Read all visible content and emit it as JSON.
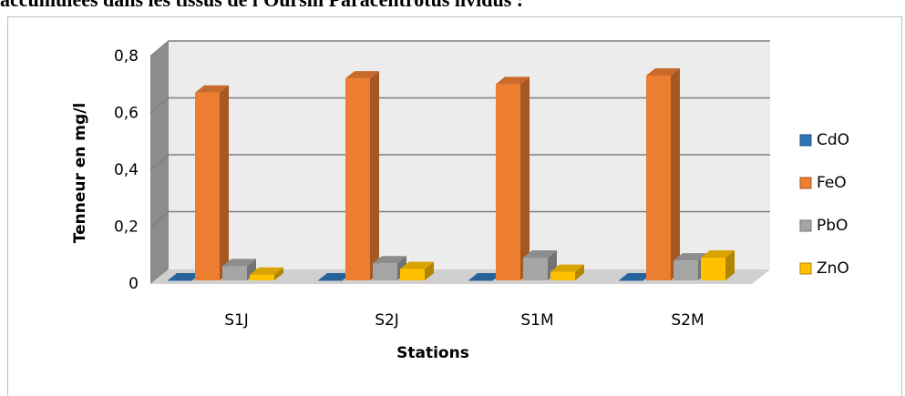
{
  "caption": "accumulées dans les tissus de l'Oursin Paracentrotus lividus :",
  "chart_data": {
    "type": "bar3d",
    "x_label": "Stations",
    "y_label": "Tenneur en mg/l",
    "categories": [
      "S1J",
      "S2J",
      "S1M",
      "S2M"
    ],
    "series": [
      {
        "name": "CdO",
        "color": "#2e75b6",
        "values": [
          0,
          0,
          0,
          0
        ]
      },
      {
        "name": "FeO",
        "color": "#ed7d31",
        "values": [
          0.66,
          0.71,
          0.69,
          0.72
        ]
      },
      {
        "name": "PbO",
        "color": "#a5a5a5",
        "values": [
          0.05,
          0.06,
          0.08,
          0.07
        ]
      },
      {
        "name": "ZnO",
        "color": "#ffc000",
        "values": [
          0.02,
          0.04,
          0.03,
          0.08
        ]
      }
    ],
    "ylim": [
      0,
      0.8
    ],
    "yticks": [
      0,
      {
        "value": 0.2,
        "label": "0,2"
      },
      {
        "value": 0.4,
        "label": "0,4"
      },
      {
        "value": 0.6,
        "label": "0,6"
      },
      {
        "value": 0.8,
        "label": "0,8"
      }
    ],
    "grid": true,
    "legend": "right"
  }
}
